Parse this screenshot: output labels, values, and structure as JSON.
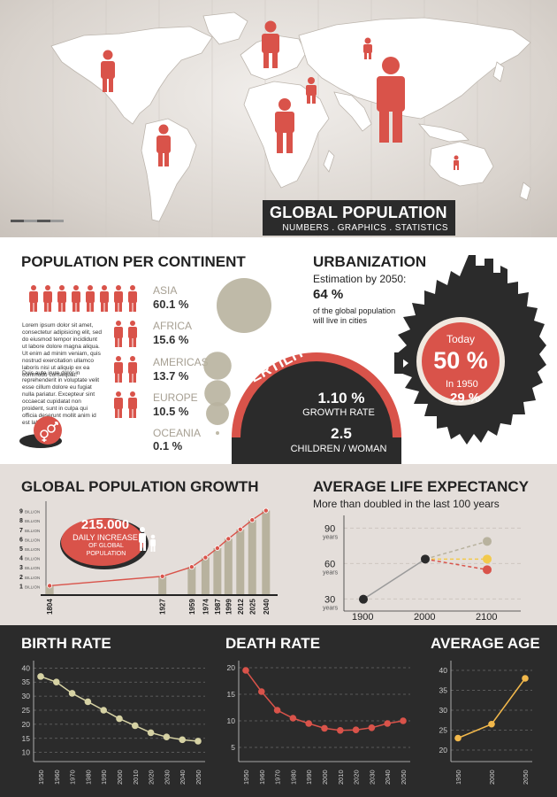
{
  "header": {
    "title": "GLOBAL POPULATION",
    "subtitle": "NUMBERS . GRAPHICS . STATISTICS"
  },
  "colors": {
    "accent": "#d9534a",
    "dark": "#2b2b2b",
    "khaki": "#b8b29e",
    "sand": "#e4deda"
  },
  "population_per_continent": {
    "title": "POPULATION PER CONTINENT",
    "lorem_1": "Lorem ipsum dolor sit amet, consectetur adipisicing elit, sed do eiusmod tempor incididunt ut labore dolore magna aliqua. Ut enim ad minim veniam, quis nostrud exercitation ullamco laboris nisi ut aliquip ex ea commodo consequat.",
    "lorem_2": "Duis aute irure dolor in reprehenderit in voluptate velit esse cillum dolore eu fugiat nulla pariatur. Excepteur sint occaecat cupidatat non proident, sunt in culpa qui officia deserunt mollit anim id est laborum.",
    "gender_icon": "male-female-symbol-icon",
    "continents": [
      {
        "name": "ASIA",
        "value": "60.1 %"
      },
      {
        "name": "AFRICA",
        "value": "15.6 %"
      },
      {
        "name": "AMERICAS",
        "value": "13.7 %"
      },
      {
        "name": "EUROPE",
        "value": "10.5 %"
      },
      {
        "name": "OCEANIA",
        "value": "0.1 %"
      }
    ]
  },
  "fertility": {
    "label": "FERTILITY",
    "growth_value": "1.10 %",
    "growth_label": "GROWTH RATE",
    "children_value": "2.5",
    "children_label": "CHILDREN / WOMAN"
  },
  "urbanization": {
    "title": "URBANIZATION",
    "estimation_label": "Estimation by 2050:",
    "estimation_value": "64 %",
    "estimation_desc_1": "of the global population",
    "estimation_desc_2": "will live in cities",
    "today_label": "Today",
    "today_value": "50 %",
    "in1950_label": "In 1950",
    "in1950_value": "29 %"
  },
  "growth": {
    "title": "GLOBAL POPULATION GROWTH",
    "bubble_value": "215.000",
    "bubble_line1": "DAILY INCREASE",
    "bubble_line2": "OF GLOBAL",
    "bubble_line3": "POPULATION",
    "billion_label": "BILLION"
  },
  "life_expectancy": {
    "title": "AVERAGE LIFE EXPECTANCY",
    "subtitle": "More than doubled in the last 100 years",
    "unit": "years"
  },
  "birth_rate": {
    "title": "BIRTH RATE"
  },
  "death_rate": {
    "title": "DEATH RATE"
  },
  "average_age": {
    "title": "AVERAGE AGE"
  },
  "chart_data": [
    {
      "id": "continents",
      "type": "bar",
      "categories": [
        "ASIA",
        "AFRICA",
        "AMERICAS",
        "EUROPE",
        "OCEANIA"
      ],
      "values": [
        60.1,
        15.6,
        13.7,
        10.5,
        0.1
      ]
    },
    {
      "id": "population_growth",
      "type": "bar",
      "title": "GLOBAL POPULATION GROWTH",
      "categories": [
        "1804",
        "1927",
        "1959",
        "1974",
        "1987",
        "1999",
        "2012",
        "2025",
        "2040"
      ],
      "x": [
        1804,
        1927,
        1959,
        1974,
        1987,
        1999,
        2012,
        2025,
        2040
      ],
      "values": [
        1,
        2,
        3,
        4,
        5,
        6,
        7,
        8,
        9
      ],
      "y_ticks": [
        1,
        2,
        3,
        4,
        5,
        6,
        7,
        8,
        9
      ],
      "ylim": [
        0,
        9.5
      ]
    },
    {
      "id": "life_expectancy",
      "type": "line",
      "title": "AVERAGE LIFE EXPECTANCY",
      "x": [
        1900,
        2000,
        2100
      ],
      "y_ticks": [
        30,
        60,
        90
      ],
      "ylim": [
        25,
        100
      ],
      "series": [
        {
          "x": [
            1900,
            2000
          ],
          "values": [
            32,
            66
          ],
          "color": "#333333"
        },
        {
          "x": [
            2000,
            2100
          ],
          "values": [
            66,
            81
          ],
          "color": "#b8b29e"
        },
        {
          "x": [
            2000,
            2100
          ],
          "values": [
            66,
            66
          ],
          "color": "#f2c94c"
        },
        {
          "x": [
            2000,
            2100
          ],
          "values": [
            66,
            57
          ],
          "color": "#d9534a"
        }
      ]
    },
    {
      "id": "birth_rate",
      "type": "line",
      "title": "BIRTH RATE",
      "x": [
        1950,
        1960,
        1970,
        1980,
        1990,
        2000,
        2010,
        2020,
        2030,
        2040,
        2050
      ],
      "values": [
        37,
        35,
        31,
        28,
        25,
        22,
        19.5,
        17,
        15.5,
        14.5,
        14
      ],
      "y_ticks": [
        10,
        15,
        20,
        25,
        30,
        35,
        40
      ],
      "ylim": [
        8,
        42
      ],
      "color": "#d6d2a4"
    },
    {
      "id": "death_rate",
      "type": "line",
      "title": "DEATH RATE",
      "x": [
        1950,
        1960,
        1970,
        1980,
        1990,
        2000,
        2010,
        2020,
        2030,
        2040,
        2050
      ],
      "values": [
        19.5,
        15.5,
        12,
        10.5,
        9.5,
        8.6,
        8.2,
        8.3,
        8.7,
        9.5,
        10
      ],
      "y_ticks": [
        5,
        10,
        15,
        20
      ],
      "ylim": [
        3,
        21
      ],
      "color": "#d9534a"
    },
    {
      "id": "average_age",
      "type": "line",
      "title": "AVERAGE AGE",
      "x": [
        1950,
        2000,
        2050
      ],
      "values": [
        23,
        26.5,
        38
      ],
      "y_ticks": [
        20,
        25,
        30,
        35,
        40
      ],
      "ylim": [
        18,
        42
      ],
      "color": "#f2b84b"
    }
  ]
}
